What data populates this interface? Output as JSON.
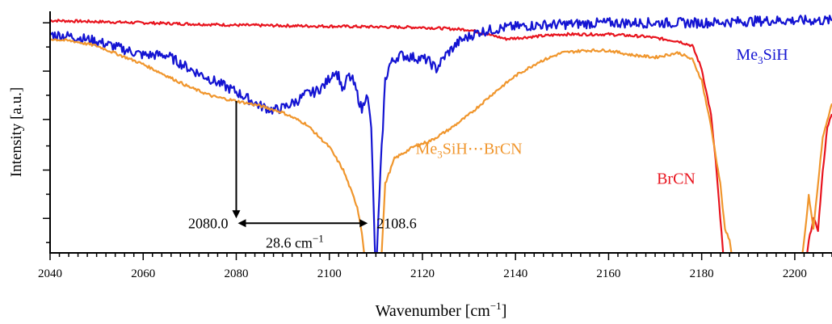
{
  "chart_data": {
    "type": "line",
    "xlabel": "Wavenumber  [cm",
    "xlabel_sup": "−1",
    "xlabel_close": "]",
    "ylabel": "Intensity [a.u.]",
    "xlim": [
      2040,
      2208
    ],
    "ylim": [
      0,
      1.05
    ],
    "x_ticks": [
      2040,
      2060,
      2080,
      2100,
      2120,
      2140,
      2160,
      2180,
      2200
    ],
    "y_ticks": [
      0.15,
      0.36,
      0.58,
      0.79,
      1.0
    ],
    "grid": false,
    "legend": "none (series labeled in plot)",
    "series": [
      {
        "name": "BrCN",
        "label_parts": [
          "BrCN"
        ],
        "color": "#e8141e",
        "points": [
          [
            2040,
            1.01
          ],
          [
            2060,
            1.0
          ],
          [
            2080,
            0.99
          ],
          [
            2100,
            0.985
          ],
          [
            2120,
            0.98
          ],
          [
            2130,
            0.97
          ],
          [
            2138,
            0.93
          ],
          [
            2150,
            0.95
          ],
          [
            2160,
            0.95
          ],
          [
            2168,
            0.94
          ],
          [
            2175,
            0.92
          ],
          [
            2178,
            0.9
          ],
          [
            2180,
            0.8
          ],
          [
            2182,
            0.6
          ],
          [
            2183,
            0.4
          ],
          [
            2184,
            0.15
          ],
          [
            2185,
            -0.1
          ],
          [
            2202,
            -0.1
          ],
          [
            2203,
            0.05
          ],
          [
            2204,
            0.15
          ],
          [
            2205,
            0.1
          ],
          [
            2206,
            0.35
          ],
          [
            2207,
            0.55
          ],
          [
            2208,
            0.6
          ]
        ]
      },
      {
        "name": "Me₃SiH",
        "label_parts": [
          "Me",
          "3",
          "SiH"
        ],
        "color": "#1414d2",
        "points": [
          [
            2040,
            0.95
          ],
          [
            2045,
            0.94
          ],
          [
            2050,
            0.92
          ],
          [
            2055,
            0.89
          ],
          [
            2060,
            0.86
          ],
          [
            2065,
            0.86
          ],
          [
            2070,
            0.8
          ],
          [
            2075,
            0.75
          ],
          [
            2080,
            0.7
          ],
          [
            2085,
            0.64
          ],
          [
            2088,
            0.62
          ],
          [
            2090,
            0.63
          ],
          [
            2093,
            0.66
          ],
          [
            2095,
            0.69
          ],
          [
            2097,
            0.7
          ],
          [
            2099,
            0.73
          ],
          [
            2100,
            0.76
          ],
          [
            2101,
            0.79
          ],
          [
            2102,
            0.77
          ],
          [
            2103,
            0.7
          ],
          [
            2104,
            0.77
          ],
          [
            2105,
            0.75
          ],
          [
            2106,
            0.69
          ],
          [
            2107,
            0.62
          ],
          [
            2108,
            0.7
          ],
          [
            2109,
            0.55
          ],
          [
            2109.5,
            0.2
          ],
          [
            2110,
            -0.1
          ],
          [
            2111,
            0.35
          ],
          [
            2112,
            0.75
          ],
          [
            2113,
            0.82
          ],
          [
            2115,
            0.86
          ],
          [
            2118,
            0.85
          ],
          [
            2121,
            0.84
          ],
          [
            2123,
            0.8
          ],
          [
            2125,
            0.86
          ],
          [
            2128,
            0.92
          ],
          [
            2132,
            0.96
          ],
          [
            2138,
            0.98
          ],
          [
            2145,
            0.99
          ],
          [
            2160,
            1.0
          ],
          [
            2180,
            1.0
          ],
          [
            2195,
            1.01
          ],
          [
            2208,
            1.01
          ]
        ]
      },
      {
        "name": "Me₃SiH⋯BrCN",
        "label_parts": [
          "Me",
          "3",
          "SiH⋯BrCN"
        ],
        "color": "#f0962d",
        "points": [
          [
            2040,
            0.93
          ],
          [
            2045,
            0.92
          ],
          [
            2050,
            0.9
          ],
          [
            2055,
            0.86
          ],
          [
            2060,
            0.82
          ],
          [
            2065,
            0.77
          ],
          [
            2070,
            0.72
          ],
          [
            2075,
            0.68
          ],
          [
            2080,
            0.66
          ],
          [
            2085,
            0.64
          ],
          [
            2090,
            0.61
          ],
          [
            2095,
            0.56
          ],
          [
            2100,
            0.46
          ],
          [
            2103,
            0.36
          ],
          [
            2106,
            0.2
          ],
          [
            2107,
            0.09
          ],
          [
            2108,
            -0.1
          ],
          [
            2111,
            -0.1
          ],
          [
            2112,
            0.3
          ],
          [
            2114,
            0.41
          ],
          [
            2118,
            0.46
          ],
          [
            2122,
            0.49
          ],
          [
            2126,
            0.54
          ],
          [
            2130,
            0.6
          ],
          [
            2135,
            0.69
          ],
          [
            2140,
            0.77
          ],
          [
            2145,
            0.83
          ],
          [
            2150,
            0.87
          ],
          [
            2155,
            0.88
          ],
          [
            2160,
            0.88
          ],
          [
            2165,
            0.86
          ],
          [
            2170,
            0.85
          ],
          [
            2175,
            0.87
          ],
          [
            2178,
            0.84
          ],
          [
            2180,
            0.75
          ],
          [
            2182,
            0.55
          ],
          [
            2184,
            0.3
          ],
          [
            2185,
            0.1
          ],
          [
            2186,
            0.06
          ],
          [
            2187,
            -0.1
          ],
          [
            2201,
            -0.1
          ],
          [
            2202,
            0.05
          ],
          [
            2203,
            0.25
          ],
          [
            2204,
            0.1
          ],
          [
            2206,
            0.5
          ],
          [
            2208,
            0.65
          ]
        ]
      }
    ],
    "annotations": {
      "peak1_value": "2080.0",
      "peak2_value": "2108.6",
      "shift_label": "28.6 cm",
      "shift_sup": "−1"
    }
  }
}
